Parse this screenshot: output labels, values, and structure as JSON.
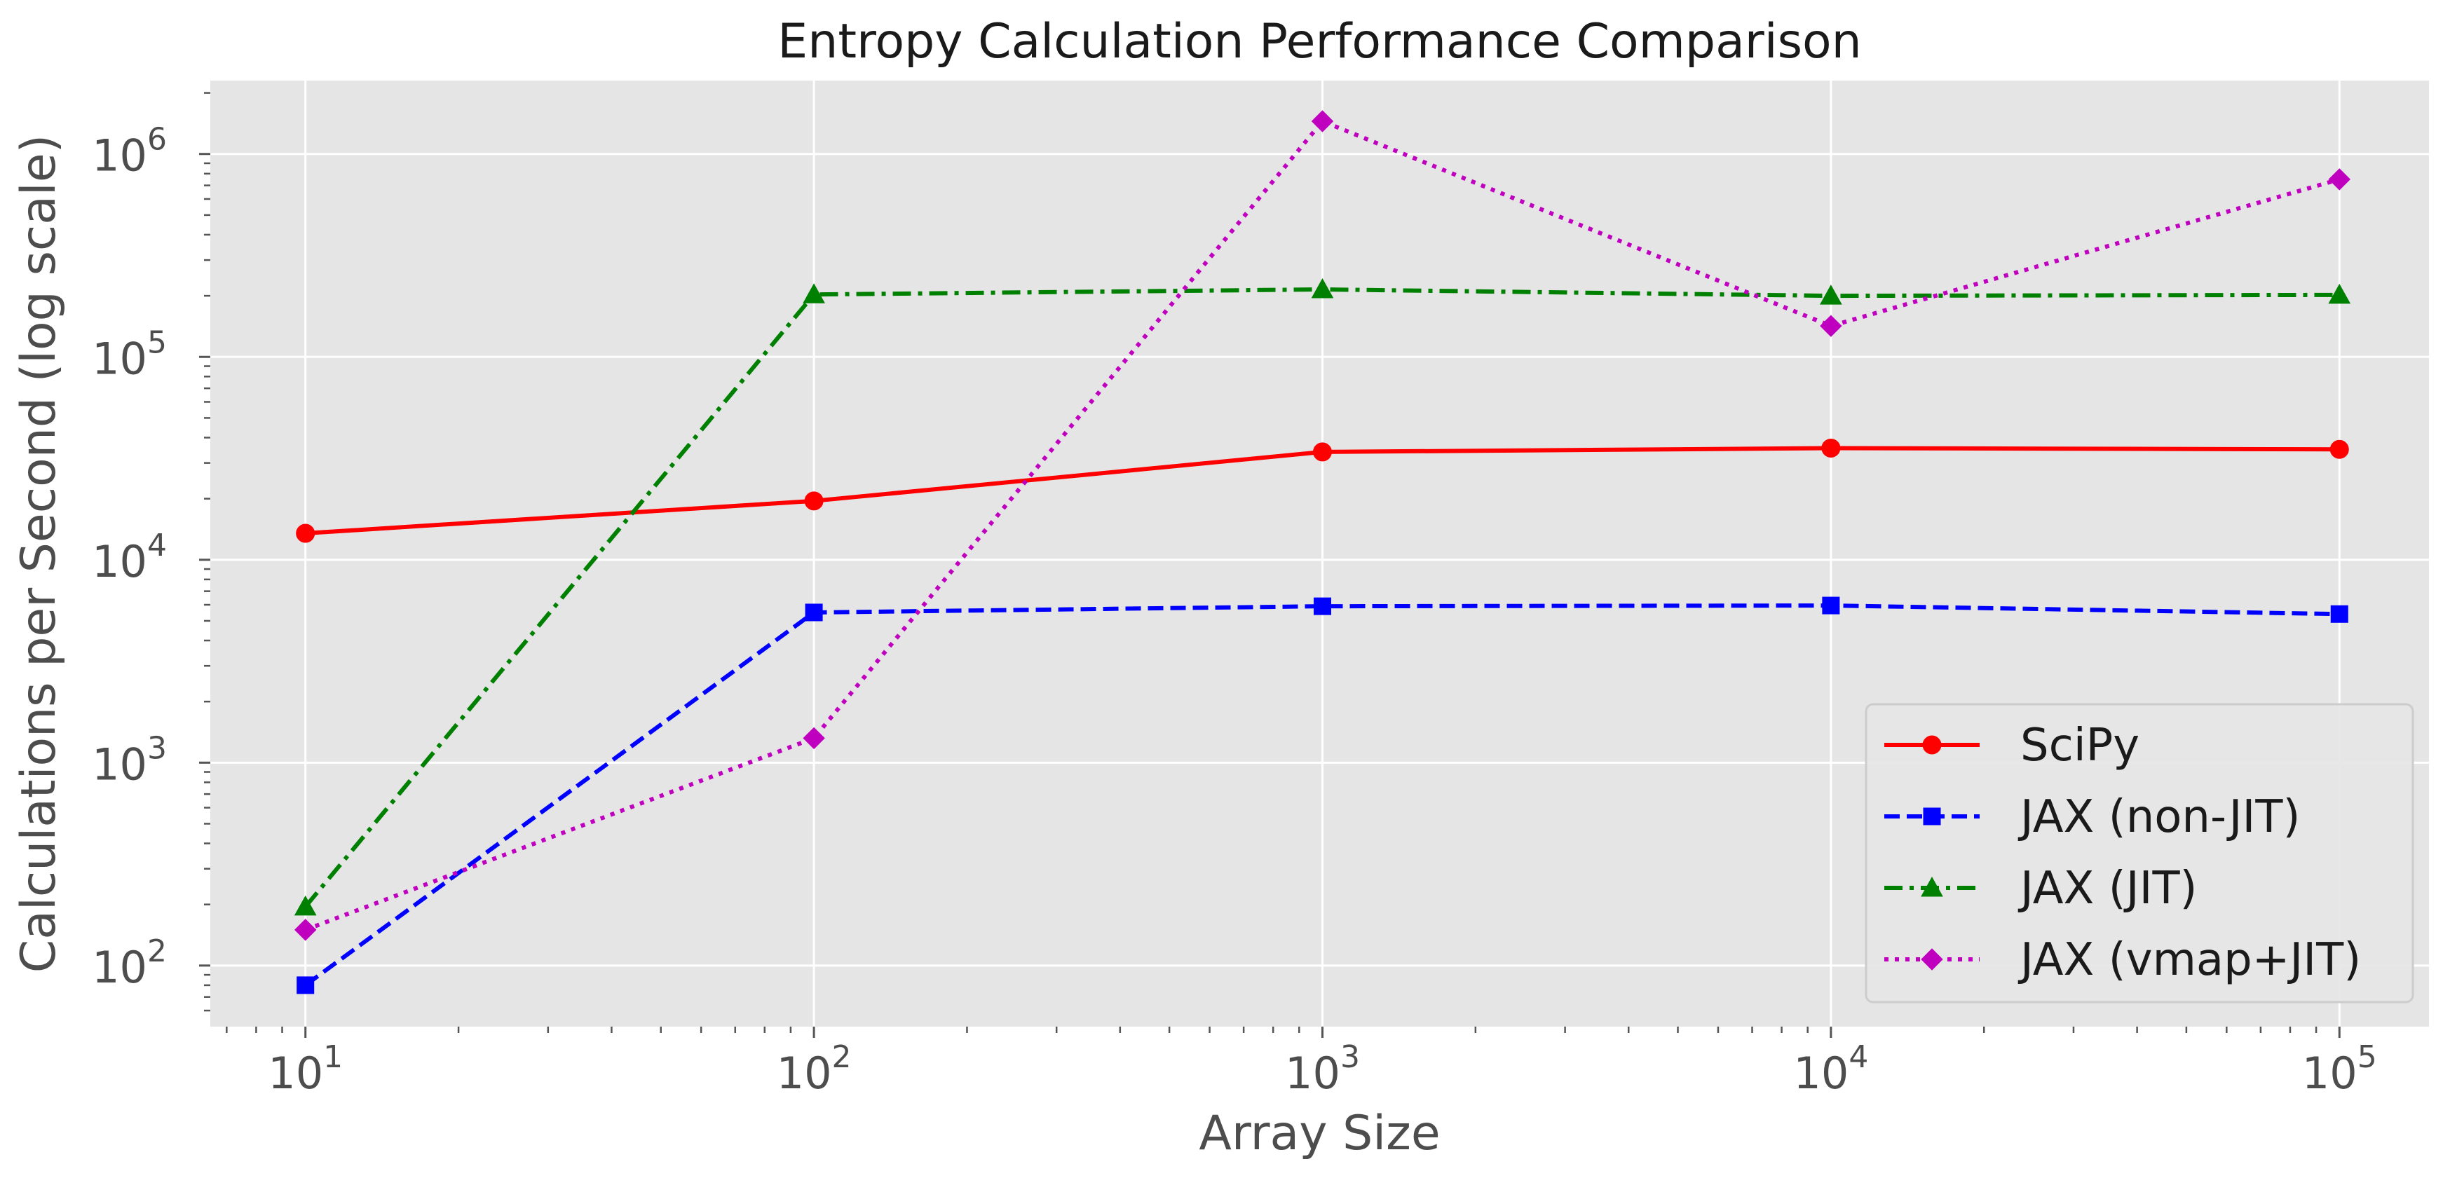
{
  "chart_data": {
    "type": "line",
    "title": "Entropy Calculation Performance Comparison",
    "xlabel": "Array Size",
    "ylabel": "Calculations per Second (log scale)",
    "xscale": "log",
    "yscale": "log",
    "xlim": [
      6.5,
      150000
    ],
    "ylim": [
      50,
      2300000
    ],
    "grid": true,
    "legend_position": "lower-right",
    "x": [
      10,
      100,
      1000,
      10000,
      100000
    ],
    "x_tick_labels": [
      {
        "value": 10,
        "base": "10",
        "exp": "1"
      },
      {
        "value": 100,
        "base": "10",
        "exp": "2"
      },
      {
        "value": 1000,
        "base": "10",
        "exp": "3"
      },
      {
        "value": 10000,
        "base": "10",
        "exp": "4"
      },
      {
        "value": 100000,
        "base": "10",
        "exp": "5"
      }
    ],
    "y_tick_labels": [
      {
        "value": 100,
        "base": "10",
        "exp": "2"
      },
      {
        "value": 1000,
        "base": "10",
        "exp": "3"
      },
      {
        "value": 10000,
        "base": "10",
        "exp": "4"
      },
      {
        "value": 100000,
        "base": "10",
        "exp": "5"
      },
      {
        "value": 1000000,
        "base": "10",
        "exp": "6"
      }
    ],
    "series": [
      {
        "name": "SciPy",
        "color": "#ff0000",
        "dash": "solid",
        "marker": "circle",
        "values": [
          13500,
          19500,
          34000,
          35500,
          35000
        ]
      },
      {
        "name": "JAX (non-JIT)",
        "color": "#0000ff",
        "dash": "dashed",
        "marker": "square",
        "values": [
          80,
          5500,
          5900,
          5950,
          5400
        ]
      },
      {
        "name": "JAX (JIT)",
        "color": "#008000",
        "dash": "dashdot",
        "marker": "triangle",
        "values": [
          195,
          203000,
          215000,
          200000,
          202000
        ]
      },
      {
        "name": "JAX (vmap+JIT)",
        "color": "#bf00bf",
        "dash": "dotted",
        "marker": "diamond",
        "values": [
          150,
          1320,
          1450000,
          142000,
          750000
        ]
      }
    ]
  }
}
